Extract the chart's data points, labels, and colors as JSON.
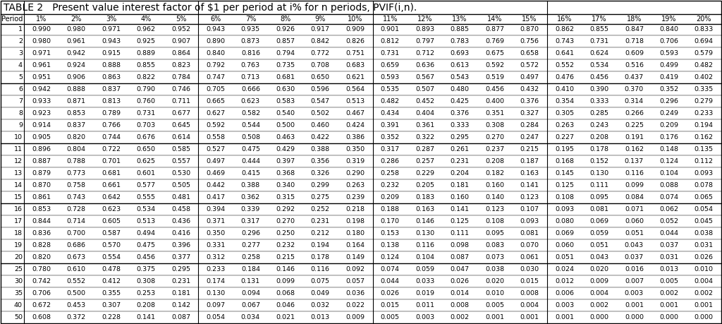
{
  "title": "TABLE 2   Present value interest factor of $1 per period at i% for n periods, PVIF(i,n).",
  "columns": [
    "Period",
    "1%",
    "2%",
    "3%",
    "4%",
    "5%",
    "6%",
    "7%",
    "8%",
    "9%",
    "10%",
    "11%",
    "12%",
    "13%",
    "14%",
    "15%",
    "16%",
    "17%",
    "18%",
    "19%",
    "20%"
  ],
  "rows": [
    [
      1,
      0.99,
      0.98,
      0.971,
      0.962,
      0.952,
      0.943,
      0.935,
      0.926,
      0.917,
      0.909,
      0.901,
      0.893,
      0.885,
      0.877,
      0.87,
      0.862,
      0.855,
      0.847,
      0.84,
      0.833
    ],
    [
      2,
      0.98,
      0.961,
      0.943,
      0.925,
      0.907,
      0.89,
      0.873,
      0.857,
      0.842,
      0.826,
      0.812,
      0.797,
      0.783,
      0.769,
      0.756,
      0.743,
      0.731,
      0.718,
      0.706,
      0.694
    ],
    [
      3,
      0.971,
      0.942,
      0.915,
      0.889,
      0.864,
      0.84,
      0.816,
      0.794,
      0.772,
      0.751,
      0.731,
      0.712,
      0.693,
      0.675,
      0.658,
      0.641,
      0.624,
      0.609,
      0.593,
      0.579
    ],
    [
      4,
      0.961,
      0.924,
      0.888,
      0.855,
      0.823,
      0.792,
      0.763,
      0.735,
      0.708,
      0.683,
      0.659,
      0.636,
      0.613,
      0.592,
      0.572,
      0.552,
      0.534,
      0.516,
      0.499,
      0.482
    ],
    [
      5,
      0.951,
      0.906,
      0.863,
      0.822,
      0.784,
      0.747,
      0.713,
      0.681,
      0.65,
      0.621,
      0.593,
      0.567,
      0.543,
      0.519,
      0.497,
      0.476,
      0.456,
      0.437,
      0.419,
      0.402
    ],
    [
      6,
      0.942,
      0.888,
      0.837,
      0.79,
      0.746,
      0.705,
      0.666,
      0.63,
      0.596,
      0.564,
      0.535,
      0.507,
      0.48,
      0.456,
      0.432,
      0.41,
      0.39,
      0.37,
      0.352,
      0.335
    ],
    [
      7,
      0.933,
      0.871,
      0.813,
      0.76,
      0.711,
      0.665,
      0.623,
      0.583,
      0.547,
      0.513,
      0.482,
      0.452,
      0.425,
      0.4,
      0.376,
      0.354,
      0.333,
      0.314,
      0.296,
      0.279
    ],
    [
      8,
      0.923,
      0.853,
      0.789,
      0.731,
      0.677,
      0.627,
      0.582,
      0.54,
      0.502,
      0.467,
      0.434,
      0.404,
      0.376,
      0.351,
      0.327,
      0.305,
      0.285,
      0.266,
      0.249,
      0.233
    ],
    [
      9,
      0.914,
      0.837,
      0.766,
      0.703,
      0.645,
      0.592,
      0.544,
      0.5,
      0.46,
      0.424,
      0.391,
      0.361,
      0.333,
      0.308,
      0.284,
      0.263,
      0.243,
      0.225,
      0.209,
      0.194
    ],
    [
      10,
      0.905,
      0.82,
      0.744,
      0.676,
      0.614,
      0.558,
      0.508,
      0.463,
      0.422,
      0.386,
      0.352,
      0.322,
      0.295,
      0.27,
      0.247,
      0.227,
      0.208,
      0.191,
      0.176,
      0.162
    ],
    [
      11,
      0.896,
      0.804,
      0.722,
      0.65,
      0.585,
      0.527,
      0.475,
      0.429,
      0.388,
      0.35,
      0.317,
      0.287,
      0.261,
      0.237,
      0.215,
      0.195,
      0.178,
      0.162,
      0.148,
      0.135
    ],
    [
      12,
      0.887,
      0.788,
      0.701,
      0.625,
      0.557,
      0.497,
      0.444,
      0.397,
      0.356,
      0.319,
      0.286,
      0.257,
      0.231,
      0.208,
      0.187,
      0.168,
      0.152,
      0.137,
      0.124,
      0.112
    ],
    [
      13,
      0.879,
      0.773,
      0.681,
      0.601,
      0.53,
      0.469,
      0.415,
      0.368,
      0.326,
      0.29,
      0.258,
      0.229,
      0.204,
      0.182,
      0.163,
      0.145,
      0.13,
      0.116,
      0.104,
      0.093
    ],
    [
      14,
      0.87,
      0.758,
      0.661,
      0.577,
      0.505,
      0.442,
      0.388,
      0.34,
      0.299,
      0.263,
      0.232,
      0.205,
      0.181,
      0.16,
      0.141,
      0.125,
      0.111,
      0.099,
      0.088,
      0.078
    ],
    [
      15,
      0.861,
      0.743,
      0.642,
      0.555,
      0.481,
      0.417,
      0.362,
      0.315,
      0.275,
      0.239,
      0.209,
      0.183,
      0.16,
      0.14,
      0.123,
      0.108,
      0.095,
      0.084,
      0.074,
      0.065
    ],
    [
      16,
      0.853,
      0.728,
      0.623,
      0.534,
      0.458,
      0.394,
      0.339,
      0.292,
      0.252,
      0.218,
      0.188,
      0.163,
      0.141,
      0.123,
      0.107,
      0.093,
      0.081,
      0.071,
      0.062,
      0.054
    ],
    [
      17,
      0.844,
      0.714,
      0.605,
      0.513,
      0.436,
      0.371,
      0.317,
      0.27,
      0.231,
      0.198,
      0.17,
      0.146,
      0.125,
      0.108,
      0.093,
      0.08,
      0.069,
      0.06,
      0.052,
      0.045
    ],
    [
      18,
      0.836,
      0.7,
      0.587,
      0.494,
      0.416,
      0.35,
      0.296,
      0.25,
      0.212,
      0.18,
      0.153,
      0.13,
      0.111,
      0.095,
      0.081,
      0.069,
      0.059,
      0.051,
      0.044,
      0.038
    ],
    [
      19,
      0.828,
      0.686,
      0.57,
      0.475,
      0.396,
      0.331,
      0.277,
      0.232,
      0.194,
      0.164,
      0.138,
      0.116,
      0.098,
      0.083,
      0.07,
      0.06,
      0.051,
      0.043,
      0.037,
      0.031
    ],
    [
      20,
      0.82,
      0.673,
      0.554,
      0.456,
      0.377,
      0.312,
      0.258,
      0.215,
      0.178,
      0.149,
      0.124,
      0.104,
      0.087,
      0.073,
      0.061,
      0.051,
      0.043,
      0.037,
      0.031,
      0.026
    ],
    [
      25,
      0.78,
      0.61,
      0.478,
      0.375,
      0.295,
      0.233,
      0.184,
      0.146,
      0.116,
      0.092,
      0.074,
      0.059,
      0.047,
      0.038,
      0.03,
      0.024,
      0.02,
      0.016,
      0.013,
      0.01
    ],
    [
      30,
      0.742,
      0.552,
      0.412,
      0.308,
      0.231,
      0.174,
      0.131,
      0.099,
      0.075,
      0.057,
      0.044,
      0.033,
      0.026,
      0.02,
      0.015,
      0.012,
      0.009,
      0.007,
      0.005,
      0.004
    ],
    [
      35,
      0.706,
      0.5,
      0.355,
      0.253,
      0.181,
      0.13,
      0.094,
      0.068,
      0.049,
      0.036,
      0.026,
      0.019,
      0.014,
      0.01,
      0.008,
      0.006,
      0.004,
      0.003,
      0.002,
      0.002
    ],
    [
      40,
      0.672,
      0.453,
      0.307,
      0.208,
      0.142,
      0.097,
      0.067,
      0.046,
      0.032,
      0.022,
      0.015,
      0.011,
      0.008,
      0.005,
      0.004,
      0.003,
      0.002,
      0.001,
      0.001,
      0.001
    ],
    [
      50,
      0.608,
      0.372,
      0.228,
      0.141,
      0.087,
      0.054,
      0.034,
      0.021,
      0.013,
      0.009,
      0.005,
      0.003,
      0.002,
      0.001,
      0.001,
      0.001,
      0.0,
      0.0,
      0.0,
      0.0
    ]
  ],
  "separator_after_periods": [
    5,
    10,
    15,
    20
  ],
  "thick_vert_after_cols": [
    1,
    6,
    11,
    16
  ],
  "bg_color": "#ffffff",
  "line_color": "#000000",
  "text_color": "#000000",
  "font_size": 6.8,
  "header_font_size": 7.0,
  "title_font_size": 10.0
}
